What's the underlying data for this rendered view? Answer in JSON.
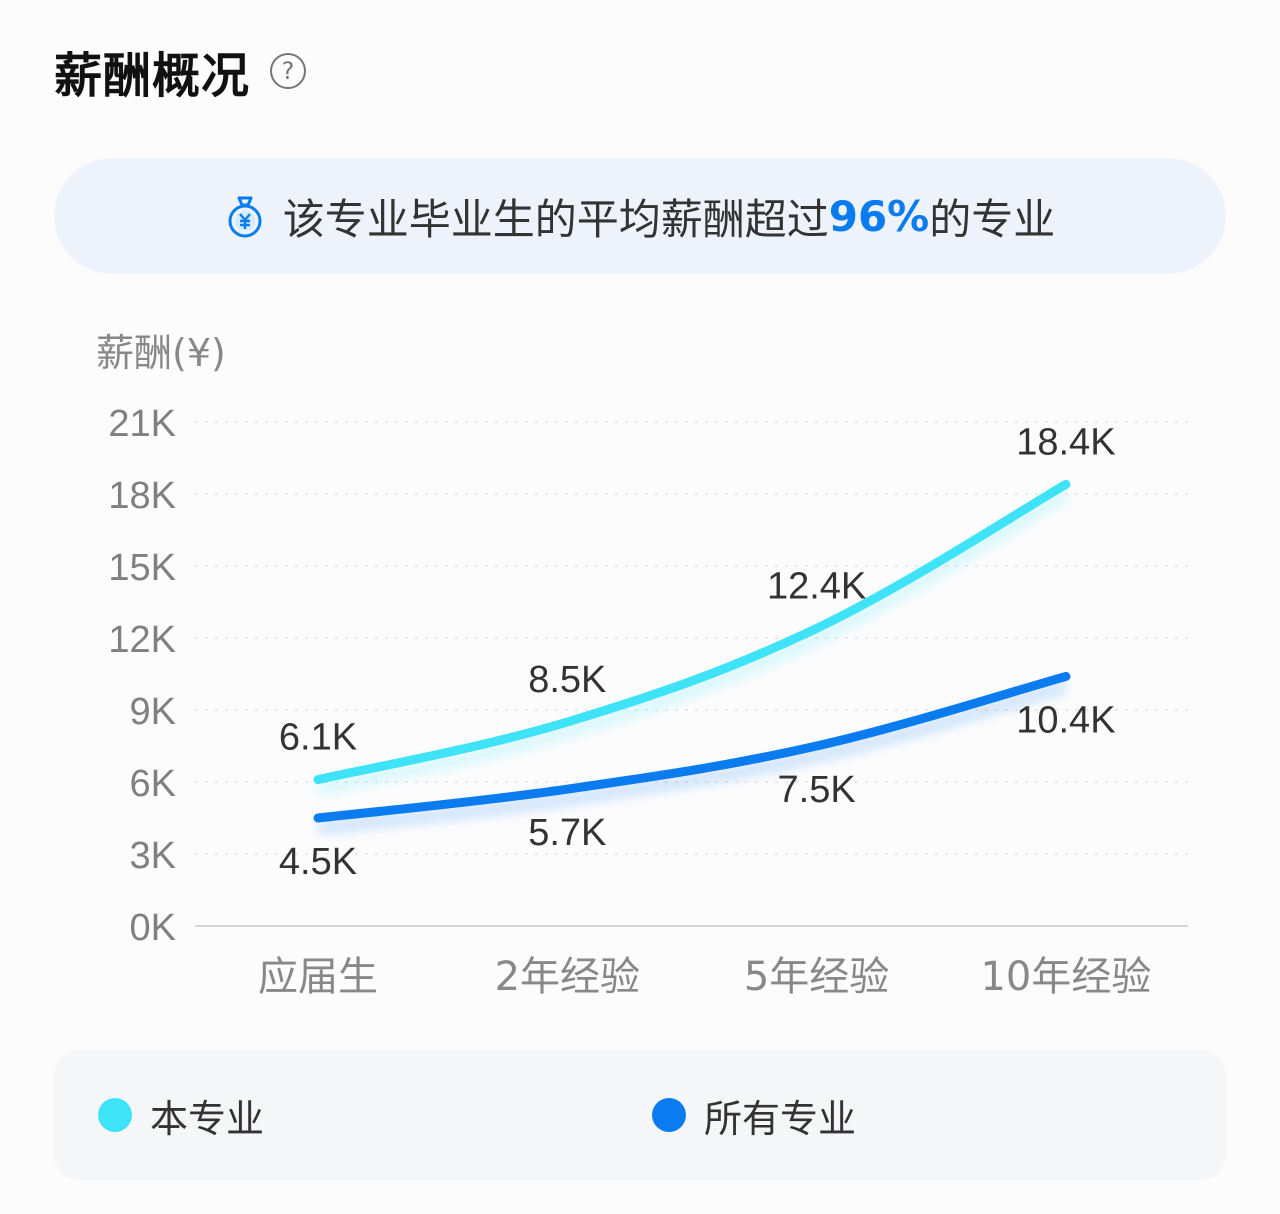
{
  "header": {
    "title": "薪酬概况",
    "help_icon": "?"
  },
  "banner": {
    "icon": "money-bag-icon",
    "prefix": "该专业毕业生的平均薪酬超过",
    "highlight": "96%",
    "suffix": "的专业",
    "highlight_color": "#0a7cf0"
  },
  "legend": {
    "items": [
      {
        "label": "本专业",
        "color": "#3ee3f7"
      },
      {
        "label": "所有专业",
        "color": "#0a7cf0"
      }
    ]
  },
  "chart_data": {
    "type": "line",
    "title": "",
    "ylabel": "薪酬(¥)",
    "xlabel": "",
    "categories": [
      "应届生",
      "2年经验",
      "5年经验",
      "10年经验"
    ],
    "y_ticks": [
      "0K",
      "3K",
      "6K",
      "9K",
      "12K",
      "15K",
      "18K",
      "21K"
    ],
    "ylim": [
      0,
      21
    ],
    "grid": true,
    "legend_position": "bottom",
    "series": [
      {
        "name": "本专业",
        "color": "#3ee3f7",
        "values": [
          6.1,
          8.5,
          12.4,
          18.4
        ],
        "labels": [
          "6.1K",
          "8.5K",
          "12.4K",
          "18.4K"
        ]
      },
      {
        "name": "所有专业",
        "color": "#0a7cf0",
        "values": [
          4.5,
          5.7,
          7.5,
          10.4
        ],
        "labels": [
          "4.5K",
          "5.7K",
          "7.5K",
          "10.4K"
        ]
      }
    ]
  }
}
